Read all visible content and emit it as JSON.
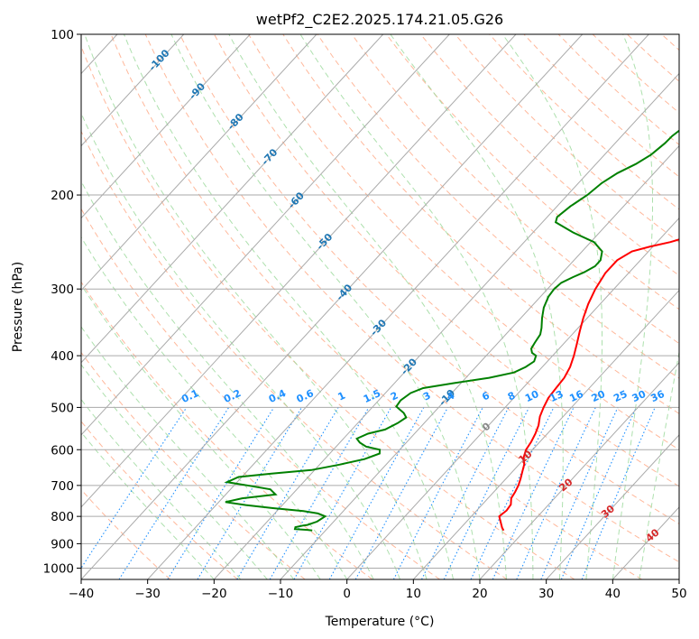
{
  "chart_data": {
    "type": "line",
    "title": "wetPf2_C2E2.2025.174.21.05.G26",
    "xlabel": "Temperature (°C)",
    "ylabel": "Pressure (hPa)",
    "xlim": [
      -40,
      50
    ],
    "ylim": [
      1050,
      100
    ],
    "yscale": "log",
    "x_ticks": [
      -40,
      -30,
      -20,
      -10,
      0,
      10,
      20,
      30,
      40,
      50
    ],
    "y_ticks": [
      100,
      200,
      300,
      400,
      500,
      600,
      700,
      800,
      900,
      1000
    ],
    "x_tick_labels": [
      "−40",
      "−30",
      "−20",
      "−10",
      "0",
      "10",
      "20",
      "30",
      "40",
      "50"
    ],
    "y_tick_labels": [
      "100",
      "200",
      "300",
      "400",
      "500",
      "600",
      "700",
      "800",
      "900",
      "1000"
    ],
    "grid": true,
    "colors": {
      "temperature": "#ff0000",
      "dewpoint": "#008000",
      "isotherm": "#aaaaaa",
      "dry_adiabat": "#ffa07a",
      "moist_adiabat": "#98d898",
      "mixing_ratio": "#1e90ff",
      "isotherm_label": "#1f77b4",
      "moist_label": "#d62728"
    },
    "series": [
      {
        "key": "temperature",
        "points": [
          [
            16.8,
            850
          ],
          [
            16.2,
            840
          ],
          [
            15.2,
            820
          ],
          [
            14.2,
            800
          ],
          [
            14.5,
            780
          ],
          [
            14.3,
            760
          ],
          [
            13.5,
            740
          ],
          [
            13.2,
            720
          ],
          [
            12.8,
            700
          ],
          [
            12.2,
            680
          ],
          [
            11.5,
            660
          ],
          [
            10.8,
            640
          ],
          [
            9.7,
            620
          ],
          [
            9.0,
            600
          ],
          [
            8.7,
            580
          ],
          [
            8.2,
            560
          ],
          [
            7.5,
            540
          ],
          [
            6.5,
            520
          ],
          [
            5.8,
            500
          ],
          [
            5.2,
            480
          ],
          [
            5.0,
            460
          ],
          [
            4.8,
            440
          ],
          [
            4.2,
            420
          ],
          [
            3.2,
            400
          ],
          [
            2.0,
            380
          ],
          [
            0.7,
            360
          ],
          [
            -0.6,
            340
          ],
          [
            -1.8,
            320
          ],
          [
            -2.8,
            300
          ],
          [
            -3.5,
            280
          ],
          [
            -3.5,
            265
          ],
          [
            -2.5,
            255
          ],
          [
            -0.5,
            250
          ],
          [
            2.0,
            245
          ],
          [
            4.5,
            238
          ],
          [
            6.5,
            230
          ],
          [
            7.8,
            220
          ],
          [
            8.8,
            210
          ],
          [
            9.2,
            200
          ],
          [
            9.6,
            190
          ],
          [
            9.8,
            180
          ],
          [
            9.5,
            170
          ],
          [
            10.0,
            162
          ],
          [
            11.0,
            155
          ],
          [
            11.6,
            148
          ],
          [
            11.8,
            140
          ],
          [
            11.6,
            132
          ],
          [
            11.4,
            127
          ],
          [
            12.2,
            122
          ],
          [
            13.4,
            118
          ],
          [
            14.4,
            115
          ],
          [
            15.3,
            110
          ],
          [
            16.8,
            105
          ],
          [
            18.0,
            100
          ]
        ]
      },
      {
        "key": "dewpoint",
        "points": [
          [
            -12.0,
            850
          ],
          [
            -12.8,
            848
          ],
          [
            -14.8,
            845
          ],
          [
            -15.0,
            838
          ],
          [
            -14.0,
            832
          ],
          [
            -13.5,
            830
          ],
          [
            -12.5,
            818
          ],
          [
            -12.0,
            800
          ],
          [
            -13.5,
            790
          ],
          [
            -16.0,
            782
          ],
          [
            -21.0,
            772
          ],
          [
            -25.5,
            762
          ],
          [
            -29.0,
            752
          ],
          [
            -27.0,
            740
          ],
          [
            -22.5,
            728
          ],
          [
            -24.0,
            712
          ],
          [
            -28.0,
            700
          ],
          [
            -31.5,
            690
          ],
          [
            -30.5,
            675
          ],
          [
            -26.0,
            665
          ],
          [
            -20.5,
            655
          ],
          [
            -17.0,
            640
          ],
          [
            -14.0,
            625
          ],
          [
            -12.5,
            610
          ],
          [
            -13.0,
            600
          ],
          [
            -15.5,
            592
          ],
          [
            -17.0,
            582
          ],
          [
            -18.0,
            572
          ],
          [
            -17.0,
            560
          ],
          [
            -15.0,
            550
          ],
          [
            -14.0,
            535
          ],
          [
            -13.5,
            522
          ],
          [
            -14.5,
            512
          ],
          [
            -15.5,
            505
          ],
          [
            -16.5,
            498
          ],
          [
            -16.7,
            485
          ],
          [
            -16.2,
            470
          ],
          [
            -15.0,
            460
          ],
          [
            -11.0,
            450
          ],
          [
            -6.5,
            440
          ],
          [
            -3.5,
            430
          ],
          [
            -2.5,
            420
          ],
          [
            -2.0,
            410
          ],
          [
            -2.5,
            400
          ],
          [
            -3.5,
            395
          ],
          [
            -4.2,
            388
          ],
          [
            -4.5,
            378
          ],
          [
            -4.8,
            365
          ],
          [
            -5.5,
            355
          ],
          [
            -6.8,
            340
          ],
          [
            -8.0,
            325
          ],
          [
            -8.8,
            310
          ],
          [
            -9.0,
            300
          ],
          [
            -8.8,
            292
          ],
          [
            -7.8,
            285
          ],
          [
            -6.8,
            279
          ],
          [
            -6.0,
            272
          ],
          [
            -6.0,
            265
          ],
          [
            -7.0,
            255
          ],
          [
            -9.5,
            245
          ],
          [
            -14.0,
            235
          ],
          [
            -18.0,
            225
          ],
          [
            -18.5,
            220
          ],
          [
            -18.0,
            210
          ],
          [
            -17.0,
            200
          ],
          [
            -16.5,
            190
          ],
          [
            -15.5,
            182
          ],
          [
            -14.0,
            175
          ],
          [
            -13.0,
            168
          ],
          [
            -12.5,
            160
          ],
          [
            -12.4,
            155
          ],
          [
            -11.8,
            148
          ],
          [
            -10.6,
            142
          ],
          [
            -9.3,
            135
          ],
          [
            -8.5,
            127
          ],
          [
            -7.8,
            120
          ],
          [
            -7.2,
            115
          ],
          [
            -6.2,
            110
          ],
          [
            -4.3,
            105
          ],
          [
            -3.5,
            100
          ]
        ]
      }
    ],
    "isotherm_labels": [
      "-100",
      "-90",
      "-80",
      "-70",
      "-60",
      "-50",
      "-40",
      "-30",
      "-20",
      "-10",
      "0",
      "10",
      "20",
      "30",
      "40"
    ],
    "mixing_ratio_labels": [
      "0.1",
      "0.2",
      "0.4",
      "0.6",
      "1",
      "1.5",
      "2",
      "3",
      "4",
      "6",
      "8",
      "10",
      "13",
      "16",
      "20",
      "25",
      "30",
      "36"
    ]
  }
}
